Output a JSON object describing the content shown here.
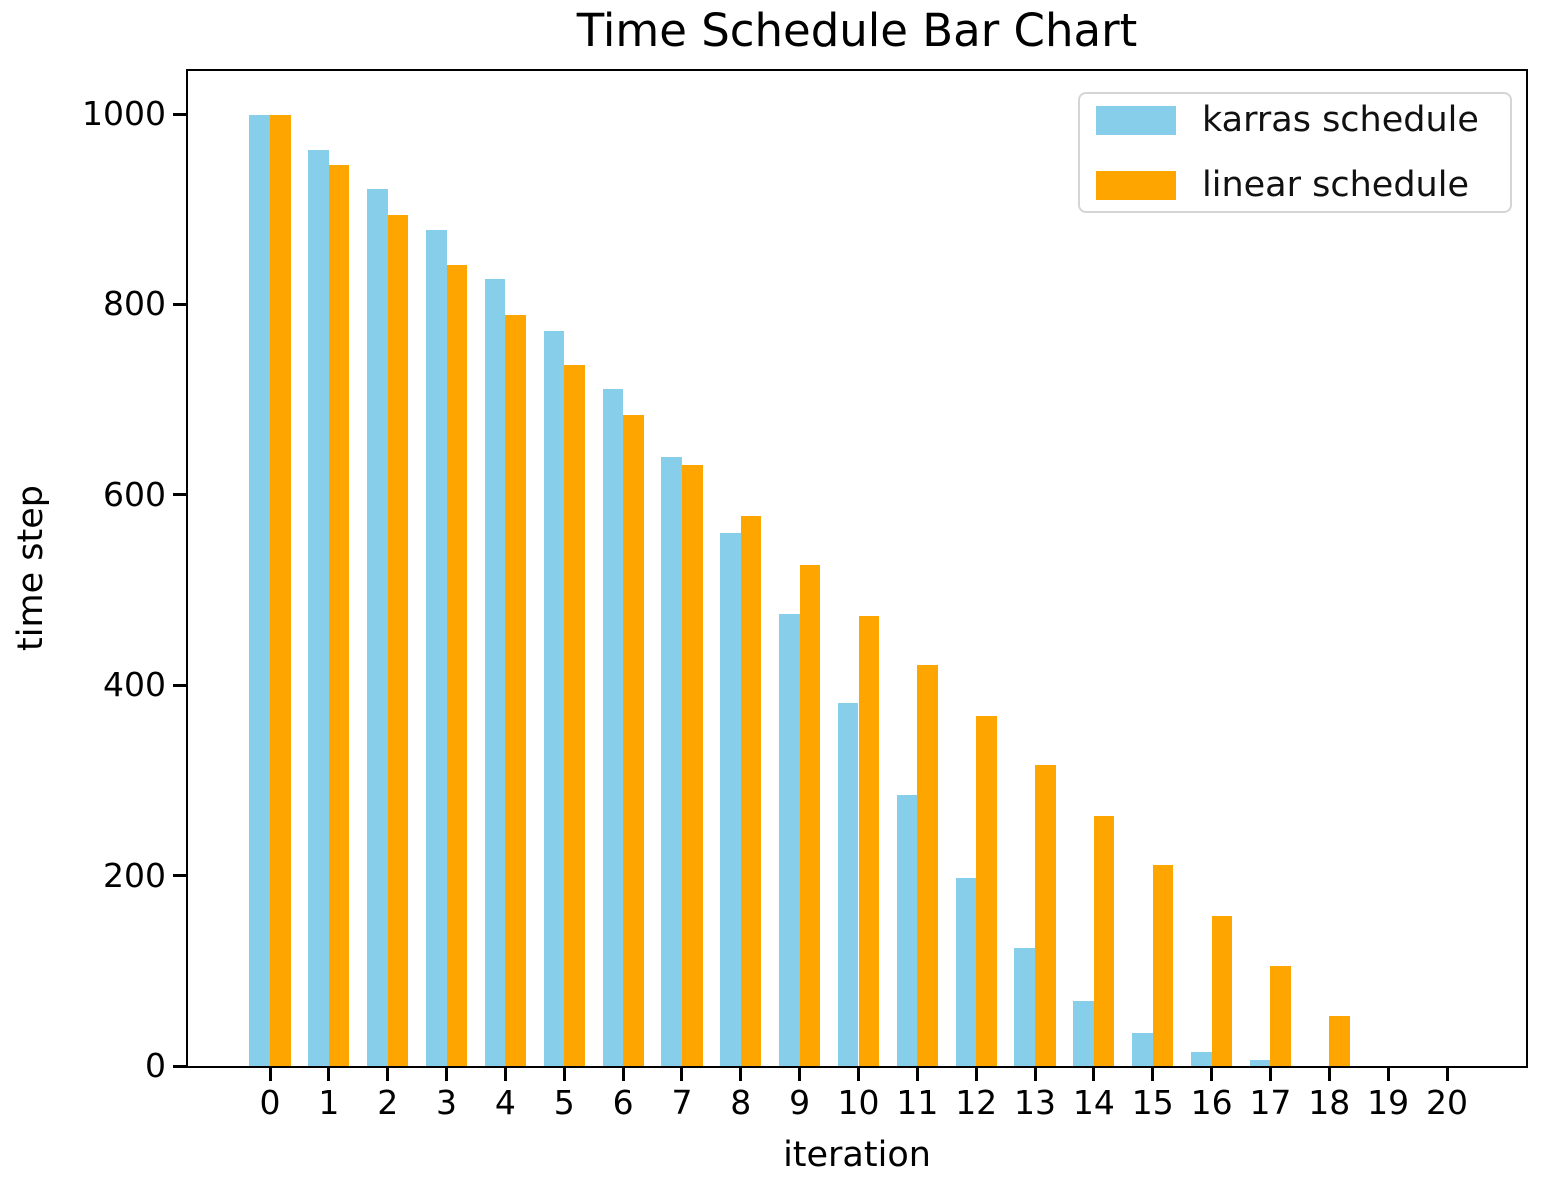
{
  "figure": {
    "title": "Time Schedule Bar Chart",
    "xlabel": "iteration",
    "ylabel": "time step"
  },
  "chart_data": {
    "type": "bar",
    "title": "Time Schedule Bar Chart",
    "xlabel": "iteration",
    "ylabel": "time step",
    "x": [
      0,
      1,
      2,
      3,
      4,
      5,
      6,
      7,
      8,
      9,
      10,
      11,
      12,
      13,
      14,
      15,
      16,
      17,
      18,
      19
    ],
    "series": [
      {
        "name": "karras schedule",
        "color": "#87CEEB",
        "values": [
          999,
          962,
          921,
          878,
          827,
          772,
          711,
          640,
          560,
          475,
          381,
          285,
          197,
          124,
          68,
          35,
          15,
          6,
          0,
          0
        ]
      },
      {
        "name": "linear schedule",
        "color": "#FFA500",
        "values": [
          999,
          946,
          894,
          841,
          789,
          736,
          684,
          631,
          578,
          526,
          473,
          421,
          368,
          316,
          263,
          211,
          158,
          105,
          53,
          0
        ]
      }
    ],
    "x_ticks": [
      0,
      1,
      2,
      3,
      4,
      5,
      6,
      7,
      8,
      9,
      10,
      11,
      12,
      13,
      14,
      15,
      16,
      17,
      18,
      19,
      20
    ],
    "y_ticks": [
      0,
      200,
      400,
      600,
      800,
      1000
    ],
    "ylim": [
      0,
      1048
    ],
    "xlim": [
      -1.4,
      21.4
    ],
    "bar_width": 0.35,
    "grid": false,
    "legend_position": "upper right",
    "spine_color": "#000000",
    "background": "#ffffff"
  }
}
